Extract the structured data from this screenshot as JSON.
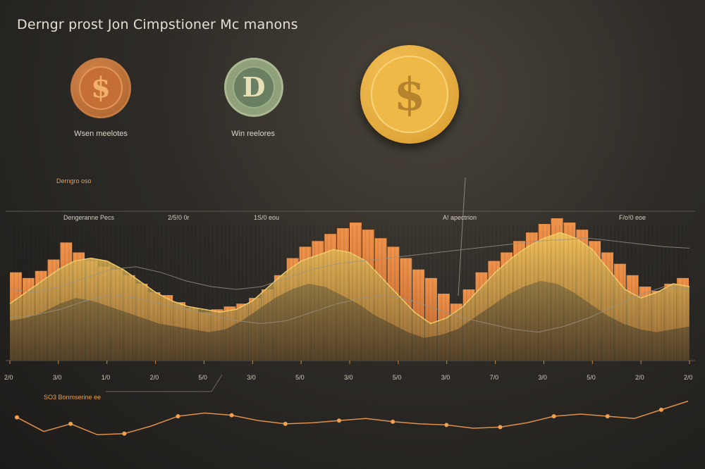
{
  "header": {
    "title": "Derngr prost Jon Cimpstioner Mc manons"
  },
  "coins": [
    {
      "symbol": "$",
      "label": "Wsen meelotes",
      "color": "#c56f37"
    },
    {
      "symbol": "D",
      "label": "Win reelores",
      "color": "#6b8062"
    },
    {
      "symbol": "$",
      "label": "",
      "color": "#efb948"
    }
  ],
  "labels": {
    "chart_caption": "Derngro oso",
    "annotation": "SO3 Bonmserine ee"
  },
  "chart_data": [
    {
      "type": "area",
      "section_labels": [
        "Dengeranne Pecs",
        "2/5!0 0r",
        "1S/0 eou",
        "A! apectrion",
        "F/o!0 eoe"
      ],
      "tick_labels": [
        "2/0",
        "3/0",
        "1/0",
        "2/0",
        "5/0",
        "3/0",
        "5/0",
        "3/0",
        "5/0",
        "3/0",
        "7/0",
        "3/0",
        "5/0",
        "2/0",
        "2/0"
      ],
      "bars_orange": [
        62,
        58,
        63,
        71,
        83,
        76,
        70,
        66,
        64,
        60,
        54,
        48,
        46,
        41,
        37,
        34,
        36,
        38,
        40,
        44,
        50,
        60,
        72,
        80,
        84,
        89,
        93,
        97,
        92,
        86,
        80,
        72,
        64,
        58,
        47,
        40,
        50,
        62,
        70,
        76,
        84,
        90,
        96,
        100,
        97,
        92,
        84,
        76,
        68,
        60,
        52,
        49,
        54,
        58
      ],
      "gold_area": [
        40,
        48,
        56,
        64,
        70,
        72,
        70,
        64,
        56,
        48,
        42,
        38,
        36,
        34,
        36,
        42,
        52,
        62,
        70,
        74,
        78,
        76,
        70,
        58,
        46,
        34,
        26,
        30,
        38,
        50,
        62,
        72,
        80,
        86,
        90,
        86,
        78,
        64,
        50,
        44,
        48,
        54,
        52
      ],
      "dark_area": [
        28,
        30,
        34,
        40,
        44,
        42,
        38,
        34,
        30,
        26,
        24,
        22,
        20,
        22,
        28,
        36,
        44,
        50,
        54,
        52,
        46,
        40,
        32,
        26,
        20,
        16,
        18,
        22,
        30,
        38,
        46,
        52,
        56,
        54,
        48,
        40,
        32,
        26,
        22,
        20,
        22,
        24
      ],
      "lines": [
        [
          50,
          48,
          52,
          58,
          64,
          66,
          62,
          56,
          52,
          50,
          52,
          58,
          64,
          68,
          70,
          72,
          74,
          76,
          78,
          80,
          82,
          84,
          85,
          86,
          84,
          82,
          80,
          79
        ],
        [
          30,
          32,
          36,
          42,
          46,
          44,
          40,
          36,
          32,
          28,
          26,
          28,
          34,
          40,
          44,
          46,
          42,
          36,
          30,
          26,
          22,
          20,
          24,
          30,
          38,
          46,
          52,
          50
        ]
      ],
      "ylim": [
        0,
        100
      ]
    },
    {
      "type": "line",
      "values": [
        42,
        16,
        30,
        10,
        12,
        26,
        44,
        50,
        46,
        36,
        30,
        32,
        36,
        40,
        34,
        30,
        28,
        22,
        24,
        32,
        44,
        48,
        44,
        40,
        56,
        72
      ],
      "ylim": [
        0,
        100
      ]
    }
  ],
  "colors": {
    "orange": "#e07a3c",
    "gold": "#e8b54a",
    "background": "#2e2b27"
  }
}
